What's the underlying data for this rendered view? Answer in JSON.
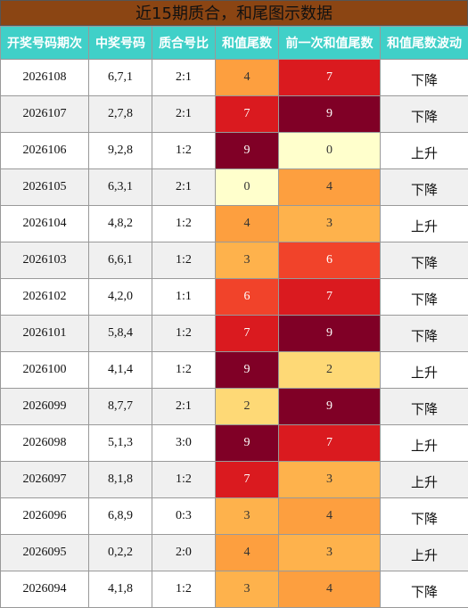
{
  "header": {
    "title": "近15期质合，和尾图示数据"
  },
  "table": {
    "columns": [
      "开奖号码期次",
      "中奖号码",
      "质合号比",
      "和值尾数",
      "前一次和值尾数",
      "和值尾数波动"
    ],
    "rows": [
      [
        "2026108",
        "6,7,1",
        "2:1",
        4,
        7,
        "下降"
      ],
      [
        "2026107",
        "2,7,8",
        "2:1",
        7,
        9,
        "下降"
      ],
      [
        "2026106",
        "9,2,8",
        "1:2",
        9,
        0,
        "上升"
      ],
      [
        "2026105",
        "6,3,1",
        "2:1",
        0,
        4,
        "下降"
      ],
      [
        "2026104",
        "4,8,2",
        "1:2",
        4,
        3,
        "上升"
      ],
      [
        "2026103",
        "6,6,1",
        "1:2",
        3,
        6,
        "下降"
      ],
      [
        "2026102",
        "4,2,0",
        "1:1",
        6,
        7,
        "下降"
      ],
      [
        "2026101",
        "5,8,4",
        "1:2",
        7,
        9,
        "下降"
      ],
      [
        "2026100",
        "4,1,4",
        "1:2",
        9,
        2,
        "上升"
      ],
      [
        "2026099",
        "8,7,7",
        "2:1",
        2,
        9,
        "下降"
      ],
      [
        "2026098",
        "5,1,3",
        "3:0",
        9,
        7,
        "上升"
      ],
      [
        "2026097",
        "8,1,8",
        "1:2",
        7,
        3,
        "上升"
      ],
      [
        "2026096",
        "6,8,9",
        "0:3",
        3,
        4,
        "下降"
      ],
      [
        "2026095",
        "0,2,2",
        "2:0",
        4,
        3,
        "上升"
      ],
      [
        "2026094",
        "4,1,8",
        "1:2",
        3,
        4,
        "下降"
      ]
    ]
  }
}
